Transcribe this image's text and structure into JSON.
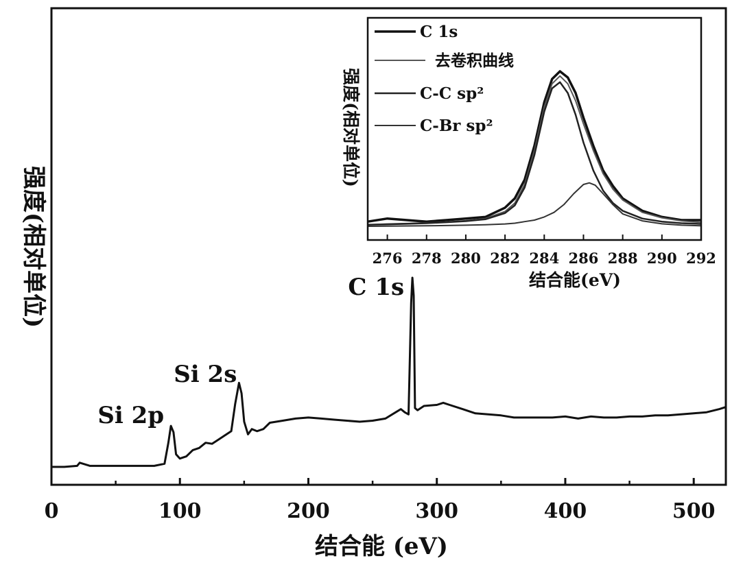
{
  "chart_data": [
    {
      "type": "line",
      "xlabel": "结合能 (eV)",
      "ylabel": "强度(相对单位)",
      "xlim": [
        0,
        525
      ],
      "xticks": [
        "0",
        "100",
        "200",
        "300",
        "400",
        "500"
      ],
      "xtick_values": [
        0,
        100,
        200,
        300,
        400,
        500
      ],
      "yticks": [],
      "grid": false,
      "annotations": [
        {
          "text": "Si 2p",
          "x": 93
        },
        {
          "text": "Si 2s",
          "x": 146
        },
        {
          "text": "C 1s",
          "x": 281
        }
      ],
      "series": [
        {
          "color": "#111111",
          "x": [
            0,
            10,
            20,
            22,
            30,
            40,
            50,
            60,
            70,
            80,
            88,
            91,
            93,
            95,
            97,
            100,
            105,
            110,
            115,
            120,
            125,
            130,
            135,
            140,
            143,
            146,
            148,
            150,
            153,
            156,
            160,
            165,
            170,
            180,
            190,
            200,
            210,
            220,
            230,
            240,
            250,
            260,
            268,
            272,
            275,
            278,
            280,
            281,
            282,
            283,
            285,
            290,
            300,
            305,
            310,
            320,
            330,
            340,
            350,
            360,
            370,
            380,
            390,
            400,
            410,
            420,
            430,
            440,
            450,
            460,
            470,
            480,
            490,
            500,
            510,
            520,
            525
          ],
          "y": [
            2,
            2,
            3,
            6,
            3,
            3,
            3,
            3,
            3,
            3,
            5,
            25,
            41,
            35,
            14,
            10,
            12,
            18,
            20,
            25,
            24,
            28,
            32,
            36,
            62,
            82,
            72,
            45,
            33,
            38,
            36,
            38,
            44,
            46,
            48,
            49,
            48,
            47,
            46,
            45,
            46,
            48,
            54,
            57,
            54,
            52,
            158,
            182,
            165,
            58,
            56,
            60,
            61,
            63,
            61,
            57,
            53,
            52,
            51,
            49,
            49,
            49,
            49,
            50,
            48,
            50,
            49,
            49,
            50,
            50,
            51,
            51,
            52,
            53,
            54,
            57,
            59
          ]
        }
      ]
    },
    {
      "type": "line",
      "xlabel": "结合能(eV)",
      "ylabel": "强度(相对单位)",
      "xlim": [
        275,
        292
      ],
      "xticks": [
        "276",
        "278",
        "280",
        "282",
        "284",
        "286",
        "288",
        "290",
        "292"
      ],
      "xtick_values": [
        276,
        278,
        280,
        282,
        284,
        286,
        288,
        290,
        292
      ],
      "yticks": [],
      "grid": false,
      "legend": "top-left",
      "series": [
        {
          "name": "C 1s",
          "color": "#111111",
          "x": [
            275,
            276,
            277,
            278,
            279,
            280,
            281,
            282,
            282.5,
            283,
            283.5,
            284,
            284.4,
            284.8,
            285.2,
            285.6,
            286,
            286.5,
            287,
            287.5,
            288,
            289,
            290,
            291,
            292
          ],
          "y": [
            3,
            5,
            4,
            3,
            4,
            5,
            6,
            12,
            18,
            30,
            52,
            80,
            95,
            100,
            96,
            86,
            70,
            52,
            36,
            26,
            18,
            10,
            6,
            4,
            4
          ]
        },
        {
          "name": "去卷积曲线",
          "color": "#555555",
          "x": [
            275,
            276,
            277,
            278,
            279,
            280,
            281,
            282,
            282.5,
            283,
            283.5,
            284,
            284.4,
            284.8,
            285.2,
            285.6,
            286,
            286.5,
            287,
            287.5,
            288,
            289,
            290,
            291,
            292
          ],
          "y": [
            1,
            1.5,
            1.8,
            2.2,
            2.8,
            3.6,
            5,
            9.5,
            15,
            27,
            49,
            77,
            92,
            97,
            92,
            81,
            66,
            49,
            34,
            24,
            17,
            9,
            5.5,
            3.5,
            2.5
          ]
        },
        {
          "name": "C-C sp²",
          "color": "#222222",
          "x": [
            275,
            276,
            277,
            278,
            279,
            280,
            281,
            282,
            282.5,
            283,
            283.5,
            284,
            284.4,
            284.8,
            285.2,
            285.6,
            286,
            286.5,
            287,
            287.5,
            288,
            289,
            290,
            291,
            292
          ],
          "y": [
            1,
            1.3,
            1.6,
            2,
            2.6,
            3.3,
            4.5,
            8.5,
            13.5,
            25,
            46,
            74,
            89,
            93,
            86,
            72,
            54,
            36,
            23,
            15,
            10,
            5,
            3,
            2,
            1.5
          ]
        },
        {
          "name": "C-Br sp²",
          "color": "#333333",
          "x": [
            275,
            276,
            277,
            278,
            279,
            280,
            281,
            282,
            282.5,
            283,
            283.5,
            284,
            284.5,
            285,
            285.5,
            286,
            286.3,
            286.6,
            287,
            287.5,
            288,
            289,
            290,
            291,
            292
          ],
          "y": [
            0,
            0.1,
            0.2,
            0.3,
            0.5,
            0.7,
            1,
            1.5,
            2,
            3,
            4,
            6,
            9,
            14,
            21,
            27,
            28,
            26.5,
            21,
            14,
            8,
            3.5,
            1.6,
            0.7,
            0.3
          ]
        }
      ]
    }
  ]
}
